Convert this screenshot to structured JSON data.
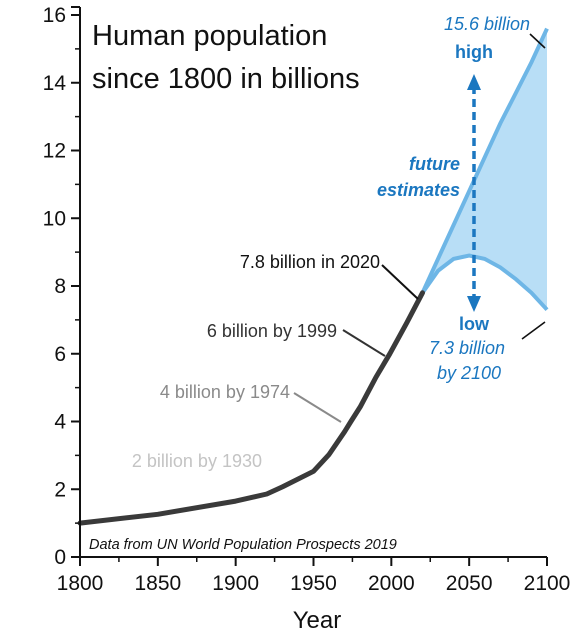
{
  "chart_data": {
    "type": "line",
    "title": "Human population since 1800 in billions",
    "title_lines": [
      "Human population",
      "since 1800 in billions"
    ],
    "xlabel": "Year",
    "ylabel": "",
    "xlim": [
      1800,
      2100
    ],
    "ylim": [
      0,
      16
    ],
    "xticks": [
      "1800",
      "1850",
      "1900",
      "1950",
      "2000",
      "2050",
      "2100"
    ],
    "yticks": [
      "0",
      "2",
      "4",
      "6",
      "8",
      "10",
      "12",
      "14",
      "16"
    ],
    "grid": false,
    "source": "Data from UN World Population Prospects 2019",
    "colors": {
      "history": "#3a3a3a",
      "projection_line": "#6eb6e6",
      "projection_fill": "#b8def6",
      "annotation_blue": "#1b77c0"
    },
    "series": [
      {
        "values_kind": "historical",
        "x": [
          1800,
          1850,
          1900,
          1920,
          1930,
          1950,
          1960,
          1970,
          1974,
          1980,
          1990,
          1999,
          2010,
          2020
        ],
        "y": [
          1.0,
          1.26,
          1.65,
          1.86,
          2.07,
          2.53,
          3.03,
          3.7,
          4.0,
          4.43,
          5.3,
          6.0,
          6.92,
          7.8
        ]
      }
    ],
    "projection_high": {
      "x": [
        2020,
        2030,
        2040,
        2050,
        2060,
        2070,
        2080,
        2090,
        2100
      ],
      "y": [
        7.8,
        8.8,
        9.8,
        10.8,
        11.8,
        12.8,
        13.7,
        14.6,
        15.6
      ]
    },
    "projection_low": {
      "x": [
        2020,
        2030,
        2040,
        2050,
        2060,
        2070,
        2080,
        2090,
        2100
      ],
      "y": [
        7.8,
        8.45,
        8.8,
        8.9,
        8.8,
        8.55,
        8.2,
        7.8,
        7.3
      ]
    },
    "annotations": {
      "high_value": "15.6 billion",
      "high_label": "high",
      "future_line1": "future",
      "future_line2": "estimates",
      "low_label": "low",
      "low_value": "7.3 billion",
      "low_year": "by 2100",
      "now": "7.8 billion in 2020",
      "b6": "6 billion by 1999",
      "b4": "4 billion by 1974",
      "b2": "2 billion by 1930"
    }
  }
}
